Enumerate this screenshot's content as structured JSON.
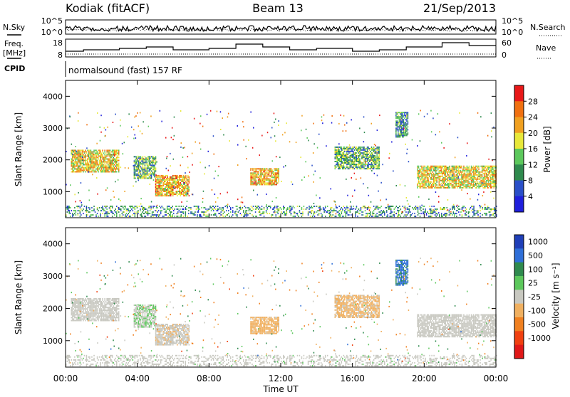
{
  "header": {
    "station": "Kodiak (fitACF)",
    "beam": "Beam 13",
    "date": "21/Sep/2013"
  },
  "top_panels": {
    "nsky": {
      "label": "N.Sky",
      "right_label": "N.Search",
      "left_ticks": [
        "10^5",
        "10^0"
      ],
      "right_ticks": [
        "10^5",
        "10^0"
      ]
    },
    "freq": {
      "label_line1": "Freq.",
      "label_line2": "[MHz]",
      "right_label": "Nave",
      "left_ticks": [
        "18",
        "8"
      ],
      "right_ticks": [
        "60",
        "0"
      ]
    },
    "cpid": {
      "label": "CPID",
      "mode_text": "normalsound (fast) 157 RF"
    }
  },
  "axes": {
    "ylabel": "Slant Range [km]",
    "yticks": [
      "4000",
      "3000",
      "2000",
      "1000"
    ],
    "xlabel": "Time UT",
    "xticks": [
      "00:00",
      "04:00",
      "08:00",
      "12:00",
      "16:00",
      "20:00",
      "00:00"
    ]
  },
  "power_scale": {
    "title": "Power [dB]",
    "ticks": [
      "28",
      "24",
      "20",
      "16",
      "12",
      "8",
      "4"
    ],
    "colors": [
      "#1f1fdc",
      "#2a4fc8",
      "#2f8a4e",
      "#5cc85c",
      "#e8e83a",
      "#f0a020",
      "#f07010",
      "#e81818"
    ]
  },
  "velocity_scale": {
    "title": "Velocity [m s⁻¹]",
    "ticks": [
      "1000",
      "500",
      "100",
      "25",
      "-25",
      "-100",
      "-500",
      "-1000"
    ],
    "colors": [
      "#1f3fb8",
      "#2f6fd8",
      "#2f8a4e",
      "#5cc85c",
      "#c8c8c0",
      "#f0b060",
      "#f08020",
      "#f04010",
      "#e01818"
    ]
  },
  "chart_data": {
    "type": "heatmap",
    "title": "Kodiak (fitACF) Beam 13 21/Sep/2013",
    "x_range_hours": [
      0,
      24
    ],
    "y_range_km": [
      180,
      4500
    ],
    "power_range_db": [
      0,
      30
    ],
    "velocity_range_ms": [
      -1000,
      1000
    ],
    "echo_regions": [
      {
        "t_start": 0.3,
        "t_end": 3.0,
        "r_min": 1600,
        "r_max": 2300,
        "power_db": 18,
        "velocity_ms": 5
      },
      {
        "t_start": 3.8,
        "t_end": 5.0,
        "r_min": 1400,
        "r_max": 2100,
        "power_db": 12,
        "velocity_ms": 80
      },
      {
        "t_start": 5.0,
        "t_end": 6.9,
        "r_min": 850,
        "r_max": 1500,
        "power_db": 20,
        "velocity_ms": -60
      },
      {
        "t_start": 10.3,
        "t_end": 11.9,
        "r_min": 1200,
        "r_max": 1700,
        "power_db": 20,
        "velocity_ms": -180
      },
      {
        "t_start": 15.0,
        "t_end": 17.5,
        "r_min": 1700,
        "r_max": 2400,
        "power_db": 12,
        "velocity_ms": -150
      },
      {
        "t_start": 18.4,
        "t_end": 19.1,
        "r_min": 2700,
        "r_max": 3500,
        "power_db": 10,
        "velocity_ms": 600
      },
      {
        "t_start": 19.6,
        "t_end": 24.0,
        "r_min": 1100,
        "r_max": 1800,
        "power_db": 18,
        "velocity_ms": 0
      },
      {
        "t_start": 0.0,
        "t_end": 24.0,
        "r_min": 200,
        "r_max": 550,
        "power_db": 10,
        "velocity_ms": 40
      }
    ]
  }
}
